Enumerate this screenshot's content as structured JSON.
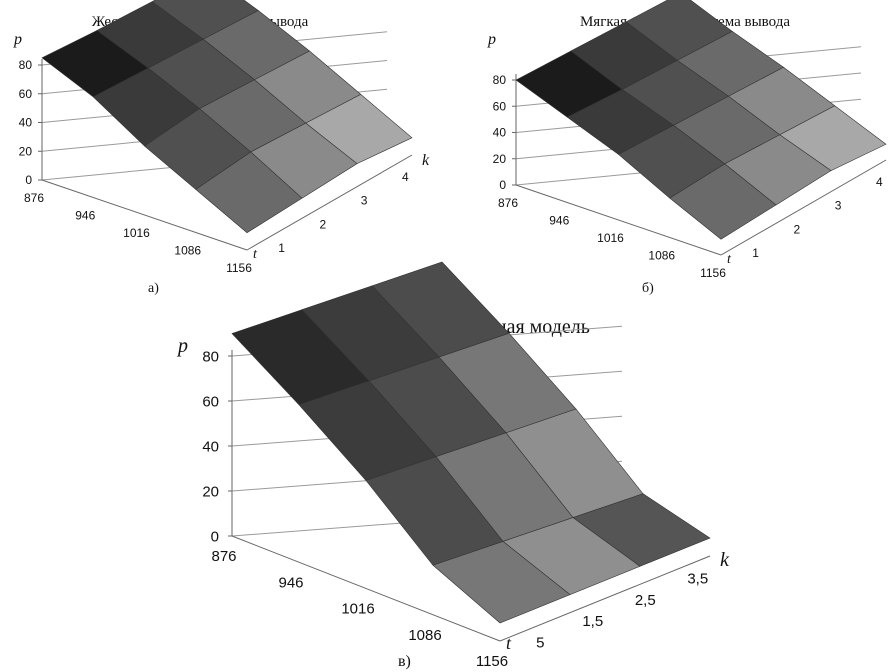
{
  "chart_data": [
    {
      "type": "surface",
      "title": "Жесткая нечеткая система вывода",
      "caption": "а)",
      "zlabel": "p",
      "xlabel": "t",
      "ylabel": "k",
      "z_ticks": [
        "0",
        "20",
        "40",
        "60",
        "80"
      ],
      "x_ticks": [
        "876",
        "946",
        "1016",
        "1086",
        "1156"
      ],
      "y_ticks": [
        "1",
        "2",
        "3",
        "4"
      ],
      "zlim": [
        0,
        80
      ],
      "surface": [
        [
          85,
          70,
          48,
          30,
          12
        ],
        [
          82,
          68,
          52,
          34,
          14
        ],
        [
          80,
          66,
          50,
          32,
          16
        ],
        [
          78,
          64,
          48,
          30,
          12
        ]
      ]
    },
    {
      "type": "surface",
      "title": "Мягкая нечеткая система вывода",
      "caption": "б)",
      "zlabel": "p",
      "xlabel": "t",
      "ylabel": "k",
      "z_ticks": [
        "0",
        "20",
        "40",
        "60",
        "80"
      ],
      "x_ticks": [
        "876",
        "946",
        "1016",
        "1086",
        "1156"
      ],
      "y_ticks": [
        "1",
        "2",
        "3",
        "4"
      ],
      "zlim": [
        0,
        80
      ],
      "surface": [
        [
          80,
          65,
          50,
          30,
          12
        ],
        [
          78,
          62,
          48,
          32,
          14
        ],
        [
          76,
          60,
          46,
          30,
          16
        ],
        [
          74,
          58,
          44,
          28,
          12
        ]
      ]
    },
    {
      "type": "surface",
      "title": "Регрессионая модель",
      "caption": "в)",
      "zlabel": "p",
      "xlabel": "t",
      "ylabel": "k",
      "z_ticks": [
        "0",
        "20",
        "40",
        "60",
        "80"
      ],
      "x_ticks": [
        "876",
        "946",
        "1016",
        "1086",
        "1156"
      ],
      "y_ticks": [
        "5",
        "1,5",
        "2,5",
        "3,5"
      ],
      "zlim": [
        0,
        80
      ],
      "surface": [
        [
          90,
          70,
          48,
          22,
          8
        ],
        [
          88,
          68,
          46,
          20,
          8
        ],
        [
          86,
          66,
          44,
          18,
          8
        ],
        [
          84,
          64,
          42,
          16,
          8
        ]
      ]
    }
  ]
}
